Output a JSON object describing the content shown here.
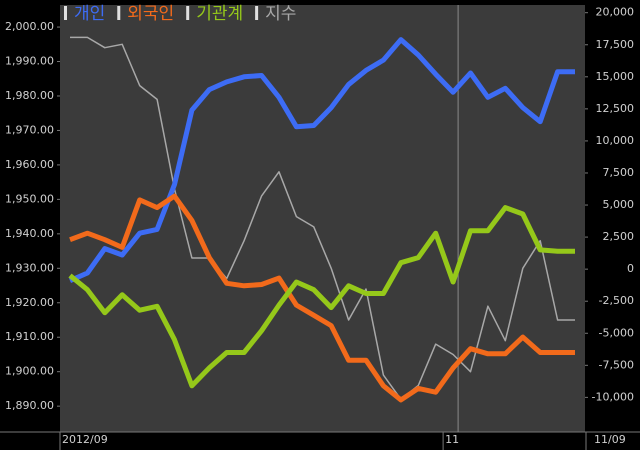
{
  "chart_data": {
    "type": "line",
    "categories": [
      "2012/09",
      null,
      null,
      null,
      null,
      null,
      null,
      null,
      null,
      null,
      null,
      null,
      null,
      null,
      null,
      null,
      null,
      null,
      null,
      null,
      null,
      null,
      "11",
      null,
      null,
      null,
      null,
      null,
      null,
      null
    ],
    "last_date": "11/09",
    "series": [
      {
        "name": "개인",
        "color": "#3d6cf5",
        "axis": "y2",
        "values": [
          -900,
          -300,
          1600,
          1100,
          2800,
          3100,
          6600,
          12400,
          14000,
          14600,
          15000,
          15100,
          13400,
          11100,
          11200,
          12600,
          14400,
          15500,
          16300,
          17900,
          16700,
          15200,
          13800,
          15300,
          13400,
          14100,
          12600,
          11500,
          15400,
          15400
        ]
      },
      {
        "name": "외국인",
        "color": "#f26a1b",
        "axis": "y2",
        "values": [
          2300,
          2800,
          2300,
          1700,
          5400,
          4800,
          5700,
          3800,
          900,
          -1100,
          -1300,
          -1200,
          -700,
          -2800,
          -3600,
          -4400,
          -7100,
          -7100,
          -9100,
          -10200,
          -9300,
          -9600,
          -7700,
          -6200,
          -6600,
          -6600,
          -5300,
          -6500,
          -6500,
          -6500
        ]
      },
      {
        "name": "기관계",
        "color": "#95c81a",
        "axis": "y2",
        "values": [
          -500,
          -1600,
          -3400,
          -2000,
          -3200,
          -2900,
          -5500,
          -9100,
          -7700,
          -6500,
          -6500,
          -4800,
          -2800,
          -1000,
          -1600,
          -3000,
          -1300,
          -1900,
          -1900,
          500,
          900,
          2800,
          -1000,
          3000,
          3000,
          4800,
          4300,
          1500,
          1400,
          1400
        ]
      },
      {
        "name": "지수",
        "color": "#a8a8a8",
        "axis": "y",
        "values": [
          1997,
          1997,
          1994,
          1995,
          1983,
          1979,
          1953,
          1933,
          1933,
          1927,
          1938,
          1951,
          1958,
          1945,
          1942,
          1930,
          1915,
          1924,
          1899,
          1892,
          1896,
          1908,
          1905,
          1900,
          1919,
          1909,
          1930,
          1938,
          1915,
          1915
        ]
      }
    ],
    "ylim": [
      1882.5,
      2006.4
    ],
    "yticks": [
      {
        "value": 1890,
        "label": "1,890.00"
      },
      {
        "value": 1900,
        "label": "1,900.00"
      },
      {
        "value": 1910,
        "label": "1,910.00"
      },
      {
        "value": 1920,
        "label": "1,920.00"
      },
      {
        "value": 1930,
        "label": "1,930.00"
      },
      {
        "value": 1940,
        "label": "1,940.00"
      },
      {
        "value": 1950,
        "label": "1,950.00"
      },
      {
        "value": 1960,
        "label": "1,960.00"
      },
      {
        "value": 1970,
        "label": "1,970.00"
      },
      {
        "value": 1980,
        "label": "1,980.00"
      },
      {
        "value": 1990,
        "label": "1,990.00"
      },
      {
        "value": 2000,
        "label": "2,000.00"
      }
    ],
    "y2lim": [
      -12700,
      20600
    ],
    "y2ticks": [
      {
        "value": -10000,
        "label": "-10,000"
      },
      {
        "value": -7500,
        "label": "-7,500"
      },
      {
        "value": -5000,
        "label": "-5,000"
      },
      {
        "value": -2500,
        "label": "-2,500"
      },
      0,
      {
        "value": 2500,
        "label": "2,500"
      },
      {
        "value": 5000,
        "label": "5,000"
      },
      {
        "value": 7500,
        "label": "7,500"
      },
      {
        "value": 10000,
        "label": "10,000"
      },
      {
        "value": 12500,
        "label": "12,500"
      },
      {
        "value": 15000,
        "label": "15,000"
      },
      {
        "value": 17500,
        "label": "17,500"
      },
      {
        "value": 20000,
        "label": "20,000"
      }
    ],
    "grid": false
  }
}
